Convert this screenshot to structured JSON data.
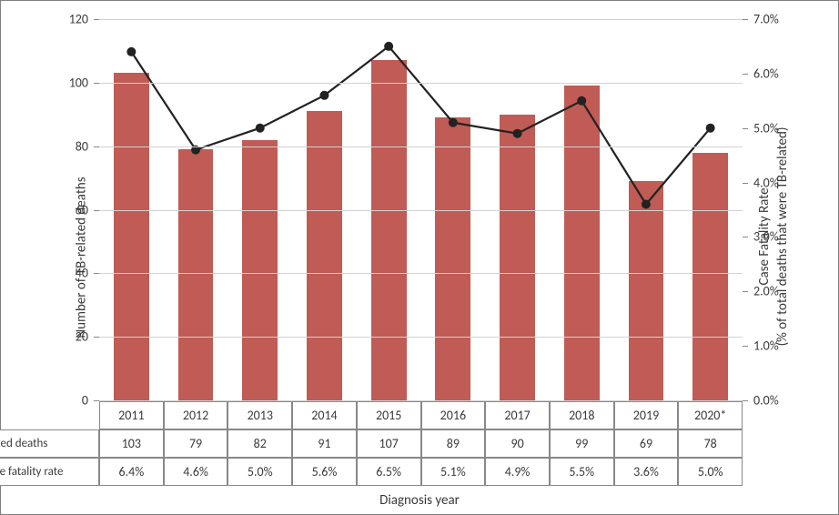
{
  "chart": {
    "type": "bar+line",
    "background_color": "#ffffff",
    "border_color": "#7f7f7f",
    "grid_color": "#d2d2d2",
    "axis_color": "#888888",
    "text_color": "#3a3a3a",
    "font_family": "Calibri, Arial, sans-serif",
    "label_fontsize": 15,
    "tick_fontsize": 14,
    "y_left": {
      "label": "Number  of TB-related deaths",
      "min": 0,
      "max": 120,
      "step": 20,
      "ticks": [
        "0",
        "20",
        "40",
        "60",
        "80",
        "100",
        "120"
      ]
    },
    "y_right": {
      "label": "Case Fatality Rate\n(% of total deaths that were  TB-related)",
      "label_line1": "Case Fatality Rate",
      "label_line2": "(% of total deaths that were  TB-related)",
      "min": 0,
      "max": 7,
      "step": 1,
      "ticks": [
        "0.0%",
        "1.0%",
        "2.0%",
        "3.0%",
        "4.0%",
        "5.0%",
        "6.0%",
        "7.0%"
      ]
    },
    "x": {
      "label": "Diagnosis year",
      "categories": [
        "2011",
        "2012",
        "2013",
        "2014",
        "2015",
        "2016",
        "2017",
        "2018",
        "2019",
        "2020*"
      ]
    },
    "bars": {
      "series_name": "TB-related deaths",
      "color": "#c05b55",
      "width_fraction": 0.55,
      "values": [
        103,
        79,
        82,
        91,
        107,
        89,
        90,
        99,
        69,
        78
      ],
      "value_labels": [
        "103",
        "79",
        "82",
        "91",
        "107",
        "89",
        "90",
        "99",
        "69",
        "78"
      ]
    },
    "line": {
      "series_name": "TB Case fatality rate",
      "color": "#222222",
      "line_width": 2.2,
      "marker_radius": 5,
      "values": [
        6.4,
        4.6,
        5.0,
        5.6,
        6.5,
        5.1,
        4.9,
        5.5,
        3.6,
        5.0
      ],
      "value_labels": [
        "6.4%",
        "4.6%",
        "5.0%",
        "5.6%",
        "6.5%",
        "5.1%",
        "4.9%",
        "5.5%",
        "3.6%",
        "5.0%"
      ]
    }
  }
}
